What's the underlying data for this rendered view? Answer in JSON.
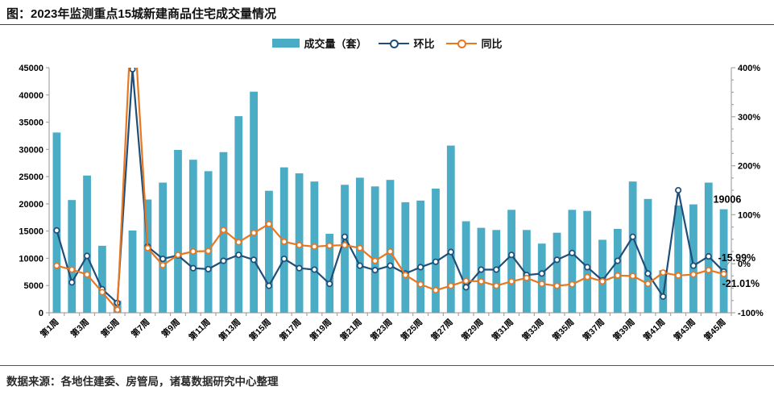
{
  "header": {
    "title": "图：2023年监测重点15城新建商品住宅成交量情况"
  },
  "legend": [
    {
      "label": "成交量（套）",
      "type": "bar",
      "color": "#4BACC6"
    },
    {
      "label": "环比",
      "type": "line",
      "color": "#1F4E79"
    },
    {
      "label": "同比",
      "type": "line",
      "color": "#E87722"
    }
  ],
  "footer": {
    "source": "数据来源：各地住建委、房管局，诸葛数据研究中心整理"
  },
  "chart_data": {
    "type": "combo-bar-line",
    "title": "2023年监测重点15城新建商品住宅成交量情况",
    "categories": [
      "第1周",
      "第2周",
      "第3周",
      "第4周",
      "第5周",
      "第6周",
      "第7周",
      "第8周",
      "第9周",
      "第10周",
      "第11周",
      "第12周",
      "第13周",
      "第14周",
      "第15周",
      "第16周",
      "第17周",
      "第18周",
      "第19周",
      "第20周",
      "第21周",
      "第22周",
      "第23周",
      "第24周",
      "第25周",
      "第26周",
      "第27周",
      "第28周",
      "第29周",
      "第30周",
      "第31周",
      "第32周",
      "第33周",
      "第34周",
      "第35周",
      "第36周",
      "第37周",
      "第38周",
      "第39周",
      "第40周",
      "第41周",
      "第42周",
      "第43周",
      "第44周",
      "第45周"
    ],
    "x_label_every": 2,
    "left_axis": {
      "min": 0,
      "max": 45000,
      "step": 5000
    },
    "right_axis": {
      "min": -100,
      "max": 400,
      "step": 100,
      "minor_step": 25,
      "unit": "%"
    },
    "grid": false,
    "legend_position": "top-center",
    "bar_series": {
      "name": "成交量（套）",
      "axis": "left",
      "color": "#4BACC6",
      "values": [
        33100,
        20700,
        25200,
        12300,
        2200,
        15100,
        20800,
        23900,
        29900,
        28100,
        26000,
        29500,
        36100,
        40600,
        22400,
        26700,
        25600,
        24100,
        14500,
        23500,
        24800,
        23200,
        24400,
        20300,
        20600,
        22800,
        30700,
        16800,
        15600,
        15200,
        18900,
        15200,
        12700,
        14700,
        18900,
        18700,
        13400,
        15400,
        24100,
        20900,
        7800,
        19700,
        19900,
        23900,
        19006
      ]
    },
    "line_series": [
      {
        "name": "环比",
        "axis": "right",
        "unit": "%",
        "color": "#1F4E79",
        "values": [
          68,
          -38,
          16,
          -52,
          -80,
          397,
          35,
          10,
          17,
          -9,
          -11,
          6,
          18,
          8,
          -45,
          10,
          -9,
          -12,
          -41,
          55,
          -4,
          -13,
          -4,
          -20,
          -7,
          4,
          24,
          -48,
          -12,
          -12,
          18,
          -23,
          -20,
          8,
          22,
          -7,
          -34,
          6,
          55,
          -20,
          -67,
          150,
          -4,
          15,
          -15.99
        ]
      },
      {
        "name": "同比",
        "axis": "right",
        "unit": "%",
        "color": "#E87722",
        "values": [
          -4,
          -12,
          -22,
          -58,
          -94,
          550,
          32,
          -3,
          18,
          25,
          26,
          69,
          44,
          63,
          81,
          45,
          38,
          35,
          37,
          38,
          32,
          6,
          25,
          -23,
          -42,
          -54,
          -45,
          -35,
          -36,
          -45,
          -36,
          -29,
          -41,
          -45,
          -42,
          -27,
          -36,
          -24,
          -25,
          -41,
          -18,
          -24,
          -22,
          -13,
          -21.01
        ]
      }
    ],
    "annotations": [
      {
        "text": "19006",
        "series": "成交量（套）",
        "week": "第45周"
      },
      {
        "text": "-15.99%",
        "series": "环比",
        "week": "第45周"
      },
      {
        "text": "-21.01%",
        "series": "同比",
        "week": "第45周"
      }
    ]
  }
}
